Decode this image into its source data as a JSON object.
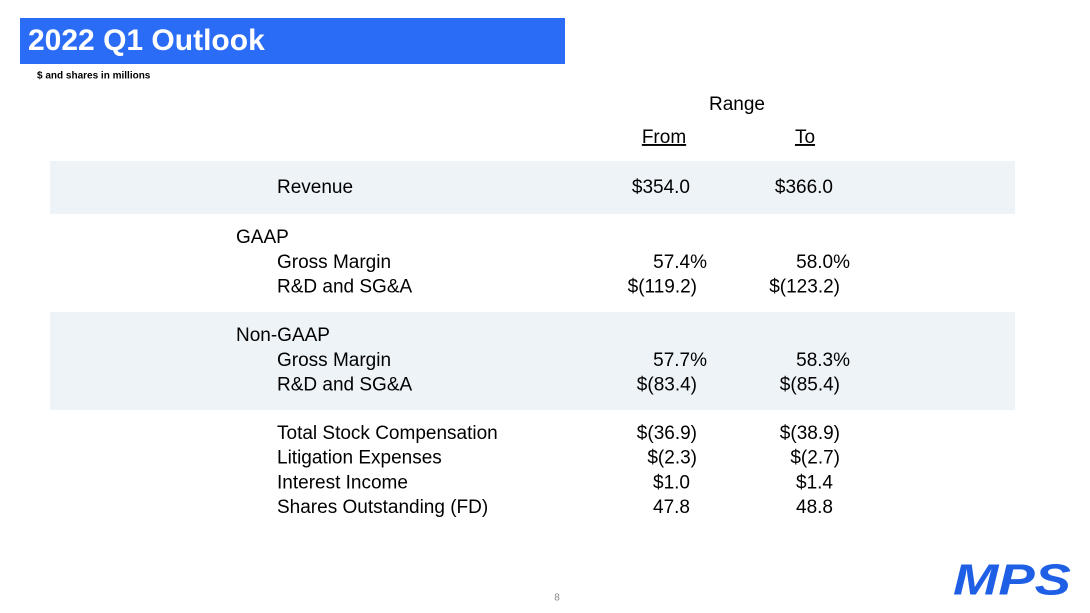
{
  "header": {
    "title": "2022 Q1 Outlook",
    "subtitle": "$ and shares in millions"
  },
  "table": {
    "range_label": "Range",
    "columns": [
      "From",
      "To"
    ],
    "groups": [
      {
        "rows": [
          [
            "Revenue",
            "$354.0",
            "$366.0"
          ]
        ]
      },
      {
        "heading": "GAAP",
        "rows": [
          [
            "Gross Margin",
            "57.4%",
            "58.0%"
          ],
          [
            "R&D and SG&A",
            "$(119.2)",
            "$(123.2)"
          ]
        ]
      },
      {
        "heading": "Non-GAAP",
        "rows": [
          [
            "Gross Margin",
            "57.7%",
            "58.3%"
          ],
          [
            "R&D and SG&A",
            "$(83.4)",
            "$(85.4)"
          ]
        ]
      },
      {
        "rows": [
          [
            "Total Stock Compensation",
            "$(36.9)",
            "$(38.9)"
          ],
          [
            "Litigation Expenses",
            "$(2.3)",
            "$(2.7)"
          ],
          [
            "Interest Income",
            "$1.0",
            "$1.4"
          ],
          [
            "Shares Outstanding (FD)",
            "47.8",
            "48.8"
          ]
        ]
      }
    ]
  },
  "footer": {
    "page_number": "8",
    "logo": "MPS"
  }
}
